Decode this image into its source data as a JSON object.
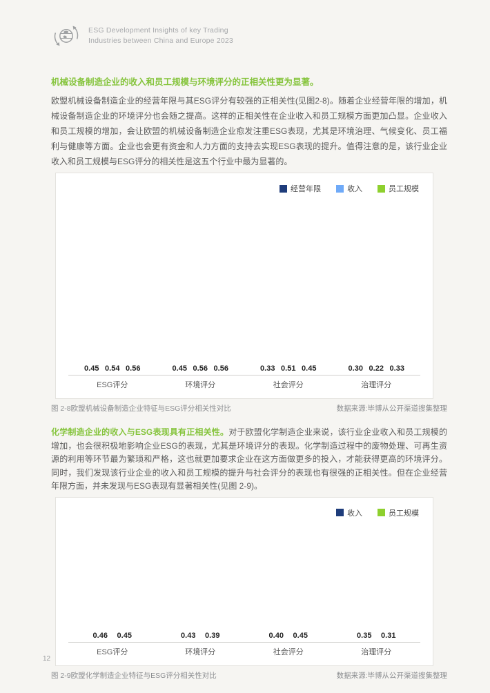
{
  "header": {
    "logo": "esg-globe-recycle-logo",
    "title_line1": "ESG Development Insights of key Trading",
    "title_line2": "Industries between China and Europe 2023"
  },
  "section1": {
    "heading": "机械设备制造企业的收入和员工规模与环境评分的正相关性更为显著。",
    "paragraph": "欧盟机械设备制造企业的经营年限与其ESG评分有较强的正相关性(见图2-8)。随着企业经营年限的增加，机械设备制造企业的环境评分也会随之提高。这样的正相关性在企业收入和员工规模方面更加凸显。企业收入和员工规模的增加，会让欧盟的机械设备制造企业愈发注重ESG表现，尤其是环境治理、气候变化、员工福利与健康等方面。企业也会更有资金和人力方面的支持去实现ESG表现的提升。值得注意的是，该行业企业收入和员工规模与ESG评分的相关性是这五个行业中最为显著的。",
    "caption": "图 2-8欧盟机械设备制造企业特征与ESG评分相关性对比",
    "source": "数据来源:毕博从公开渠道搜集整理"
  },
  "section2": {
    "heading": "化学制造企业的收入与ESG表现具有正相关性。",
    "paragraph": "对于欧盟化学制造企业来说，该行业企业收入和员工规模的增加，也会很积极地影响企业ESG的表现，尤其是环境评分的表现。化学制造过程中的废物处理、可再生资源的利用等环节最为繁琐和严格，这也就更加要求企业在这方面做更多的投入，才能获得更高的环境评分。同时，我们发现该行业企业的收入和员工规模的提升与社会评分的表现也有很强的正相关性。但在企业经营年限方面，并未发现与ESG表现有显著相关性(见图 2-9)。",
    "caption": "图 2-9欧盟化学制造企业特征与ESG评分相关性对比",
    "source": "数据来源:毕博从公开渠道搜集整理"
  },
  "chart_data": [
    {
      "type": "bar",
      "title": "图 2-8欧盟机械设备制造企业特征与ESG评分相关性对比",
      "categories": [
        "ESG评分",
        "环境评分",
        "社会评分",
        "治理评分"
      ],
      "series": [
        {
          "name": "经营年限",
          "color": "#1E3C7B",
          "values": [
            0.45,
            0.45,
            0.33,
            0.3
          ]
        },
        {
          "name": "收入",
          "color": "#6FAAF8",
          "values": [
            0.54,
            0.56,
            0.51,
            0.22
          ]
        },
        {
          "name": "员工规模",
          "color": "#8ED02E",
          "values": [
            0.56,
            0.56,
            0.45,
            0.33
          ]
        }
      ],
      "ylim": [
        0,
        0.6
      ],
      "grid": false,
      "value_labels": true,
      "legend_position": "top-right"
    },
    {
      "type": "bar",
      "title": "图 2-9欧盟化学制造企业特征与ESG评分相关性对比",
      "categories": [
        "ESG评分",
        "环境评分",
        "社会评分",
        "治理评分"
      ],
      "series": [
        {
          "name": "收入",
          "color": "#1E3C7B",
          "values": [
            0.46,
            0.43,
            0.4,
            0.35
          ]
        },
        {
          "name": "员工规模",
          "color": "#8ED02E",
          "values": [
            0.45,
            0.39,
            0.45,
            0.31
          ]
        }
      ],
      "ylim": [
        0,
        0.48
      ],
      "grid": false,
      "value_labels": true,
      "legend_position": "top-right"
    }
  ],
  "colors": {
    "page_background": "#F6F5F2",
    "card_background": "#FFFFFF",
    "heading_green": "#85C43C",
    "series_navy": "#1E3C7B",
    "series_lightblue": "#6FAAF8",
    "series_green": "#8ED02E"
  },
  "footer": {
    "page_number": "12"
  }
}
